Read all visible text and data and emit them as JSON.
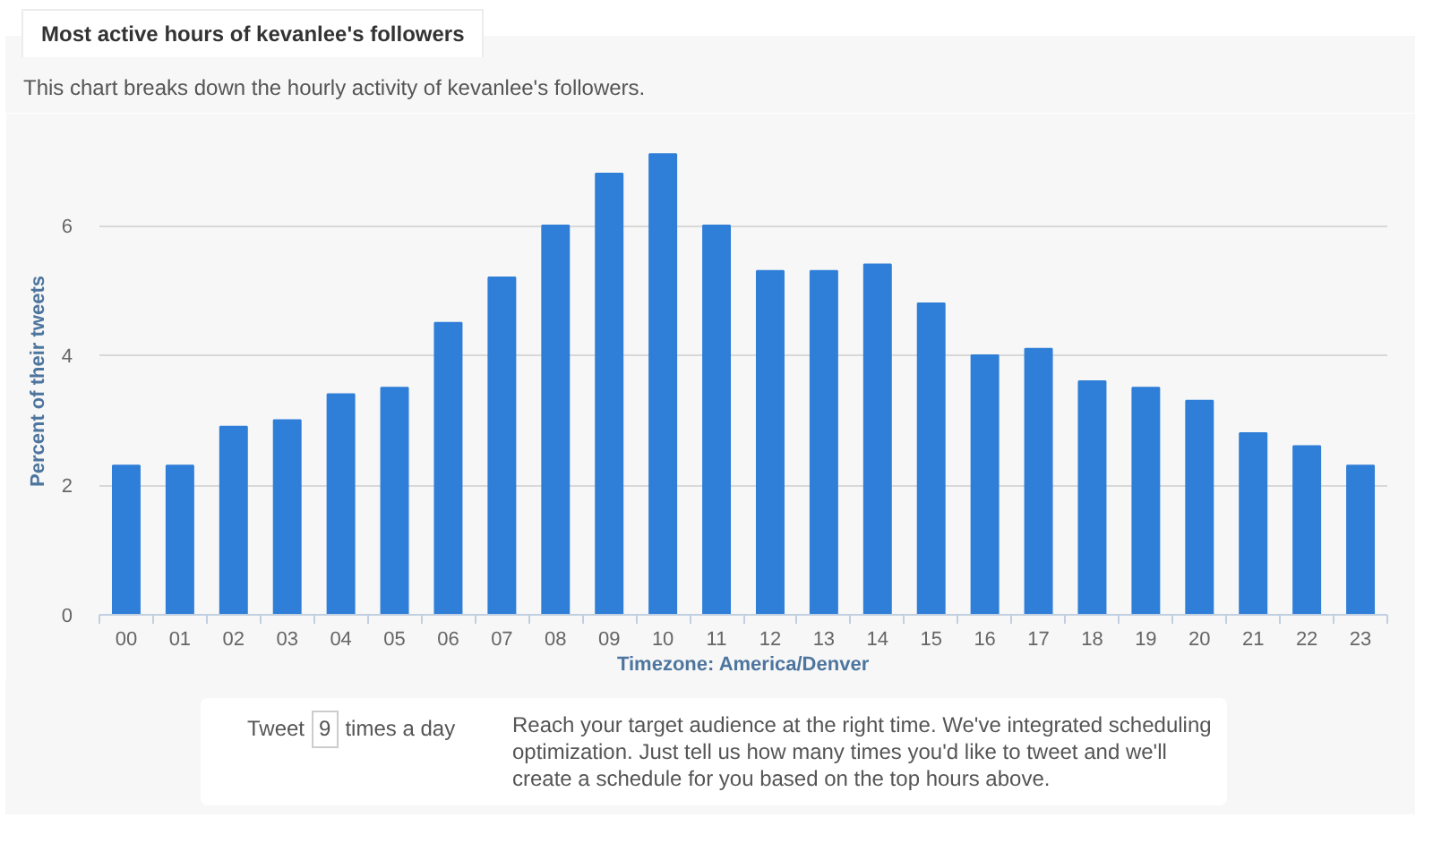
{
  "chart_data": {
    "type": "bar",
    "title": "Most active hours of kevanlee's followers",
    "subtitle": "This chart breaks down the hourly activity of kevanlee's followers.",
    "xlabel": "Timezone: America/Denver",
    "ylabel": "Percent of their tweets",
    "categories": [
      "00",
      "01",
      "02",
      "03",
      "04",
      "05",
      "06",
      "07",
      "08",
      "09",
      "10",
      "11",
      "12",
      "13",
      "14",
      "15",
      "16",
      "17",
      "18",
      "19",
      "20",
      "21",
      "22",
      "23"
    ],
    "values": [
      2.3,
      2.3,
      2.9,
      3.0,
      3.4,
      3.5,
      4.5,
      5.2,
      6.0,
      6.8,
      7.1,
      6.0,
      5.3,
      5.3,
      5.4,
      4.8,
      4.0,
      4.1,
      3.6,
      3.5,
      3.3,
      2.8,
      2.6,
      2.3
    ],
    "color": "#2f7ed8",
    "ylim": [
      0,
      7.2
    ],
    "yticks": [
      0,
      2,
      4,
      6
    ],
    "grid": "y",
    "annotations": [
      "Tweet",
      "9",
      "times a day",
      "Reach your target audience at the right time. We've integrated scheduling optimization. Just tell us how many times you'd like to tweet and we'll create a schedule for you based on the top hours above."
    ]
  }
}
